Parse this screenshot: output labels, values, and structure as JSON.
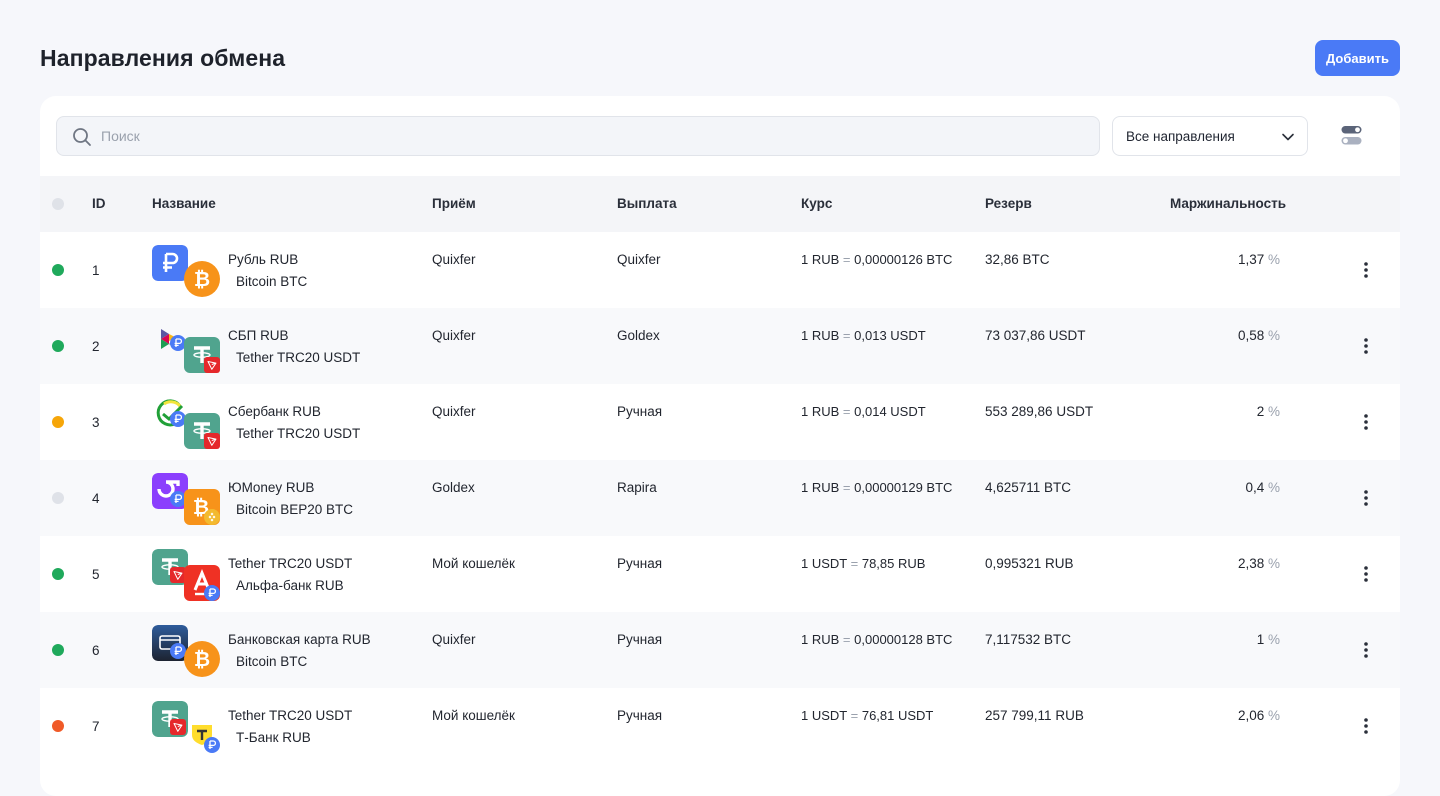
{
  "page": {
    "title": "Направления обмена",
    "add_label": "Добавить"
  },
  "toolbar": {
    "search_placeholder": "Поиск",
    "filter_value": "Все направления",
    "toggle_icon": "toggle-switches-icon"
  },
  "table": {
    "headers": {
      "id": "ID",
      "name": "Название",
      "accept": "Приём",
      "payout": "Выплата",
      "rate": "Курс",
      "reserve": "Резерв",
      "margin": "Маржинальность"
    },
    "rows": [
      {
        "status": "active",
        "status_color": "#1fa95b",
        "id": "1",
        "from": "Рубль RUB",
        "to": "Bitcoin BTC",
        "accept": "Quixfer",
        "payout": "Quixfer",
        "rate_from": "1 RUB",
        "rate_eq": "=",
        "rate_to": "0,00000126 BTC",
        "reserve": "32,86 BTC",
        "margin": "1,37",
        "margin_unit": "%",
        "from_icon": "ruble-icon",
        "to_icon": "bitcoin-icon"
      },
      {
        "status": "active",
        "status_color": "#1fa95b",
        "id": "2",
        "from": "СБП RUB",
        "to": "Tether TRC20 USDT",
        "accept": "Quixfer",
        "payout": "Goldex",
        "rate_from": "1 RUB",
        "rate_eq": "=",
        "rate_to": "0,013  USDT",
        "reserve": "73 037,86 USDT",
        "margin": "0,58",
        "margin_unit": "%",
        "from_icon": "sbp-icon",
        "to_icon": "tether-icon"
      },
      {
        "status": "warning",
        "status_color": "#f6a609",
        "id": "3",
        "from": "Сбербанк RUB",
        "to": "Tether TRC20 USDT",
        "accept": "Quixfer",
        "payout": "Ручная",
        "rate_from": "1 RUB",
        "rate_eq": "=",
        "rate_to": "0,014  USDT",
        "reserve": "553 289,86 USDT",
        "margin": "2",
        "margin_unit": "%",
        "from_icon": "sberbank-icon",
        "to_icon": "tether-icon"
      },
      {
        "status": "inactive",
        "status_color": "#dfe2e8",
        "id": "4",
        "from": "ЮMoney RUB",
        "to": "Bitcoin BEP20 BTC",
        "accept": "Goldex",
        "payout": "Rapira",
        "rate_from": "1 RUB",
        "rate_eq": "=",
        "rate_to": "0,00000129 BTC",
        "reserve": "4,625711 BTC",
        "margin": "0,4",
        "margin_unit": "%",
        "from_icon": "yoomoney-icon",
        "to_icon": "bitcoin-bep20-icon"
      },
      {
        "status": "active",
        "status_color": "#1fa95b",
        "id": "5",
        "from": "Tether TRC20 USDT",
        "to": "Альфа-банк RUB",
        "accept": "Мой кошелёк",
        "payout": "Ручная",
        "rate_from": "1 USDT",
        "rate_eq": "=",
        "rate_to": "78,85  RUB",
        "reserve": "0,995321 RUB",
        "margin": "2,38",
        "margin_unit": "%",
        "from_icon": "tether-icon",
        "to_icon": "alfabank-icon"
      },
      {
        "status": "active",
        "status_color": "#1fa95b",
        "id": "6",
        "from": "Банковская карта RUB",
        "to": "Bitcoin BTC",
        "accept": "Quixfer",
        "payout": "Ручная",
        "rate_from": "1 RUB",
        "rate_eq": "=",
        "rate_to": "0,00000128 BTC",
        "reserve": "7,117532 BTC",
        "margin": "1",
        "margin_unit": "%",
        "from_icon": "bank-card-icon",
        "to_icon": "bitcoin-icon"
      },
      {
        "status": "error",
        "status_color": "#f05a28",
        "id": "7",
        "from": "Tether TRC20 USDT",
        "to": "Т-Банк RUB",
        "accept": "Мой кошелёк",
        "payout": "Ручная",
        "rate_from": "1 USDT",
        "rate_eq": "=",
        "rate_to": "76,81  USDT",
        "reserve": "257 799,11 RUB",
        "margin": "2,06",
        "margin_unit": "%",
        "from_icon": "tether-icon",
        "to_icon": "tbank-icon"
      }
    ]
  },
  "colors": {
    "accent": "#4a7af6",
    "bitcoin": "#f7931a",
    "tether": "#50a48e",
    "tron": "#e5282b",
    "ruble": "#4a7af6"
  }
}
